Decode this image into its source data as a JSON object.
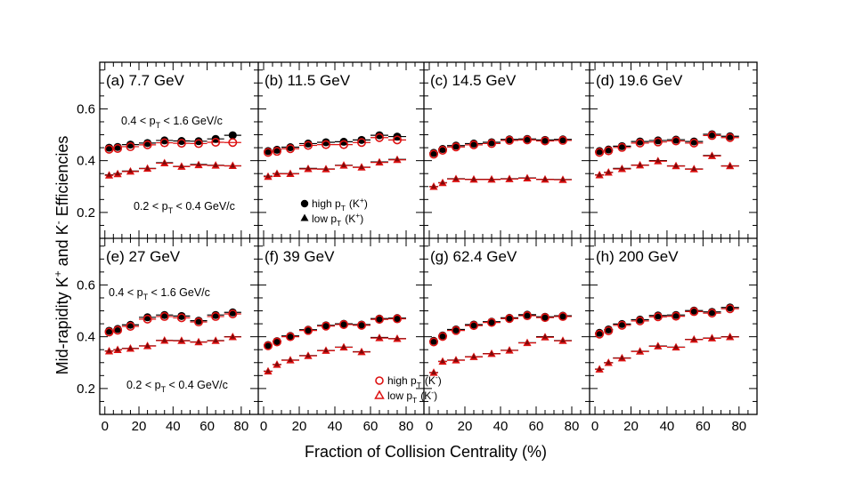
{
  "figure": {
    "ylabel_parts": [
      "Mid-rapidity K",
      "+",
      " and K",
      "-",
      " Efficiencies"
    ],
    "xlabel": "Fraction of Collision Centrality (%)",
    "xticks": [
      "0",
      "20",
      "40",
      "60",
      "80"
    ],
    "yticks": [
      "0.2",
      "0.4",
      "0.6"
    ],
    "colors": {
      "kplus": "#000000",
      "kminus": "#dd1111",
      "axis": "#000000"
    }
  },
  "annotations": {
    "high_range": {
      "pre": "0.4 < p",
      "sub": "T",
      "post": " < 1.6 GeV/c"
    },
    "low_range": {
      "pre": "0.2 < p",
      "sub": "T",
      "post": " < 0.4 GeV/c"
    }
  },
  "legends": {
    "kplus": [
      {
        "marker": "filled-circle",
        "pre": "high p",
        "sub": "T",
        "particle": "K",
        "charge": "+"
      },
      {
        "marker": "filled-triangle",
        "pre": "low p",
        "sub": "T",
        "particle": "K",
        "charge": "+"
      }
    ],
    "kminus": [
      {
        "marker": "open-circle",
        "pre": "high p",
        "sub": "T",
        "particle": "K",
        "charge": "-"
      },
      {
        "marker": "open-triangle",
        "pre": "low p",
        "sub": "T",
        "particle": "K",
        "charge": "-"
      }
    ]
  },
  "chart_data": {
    "type": "scatter",
    "x_label": "Fraction of Collision Centrality (%)",
    "y_label": "Mid-rapidity K+ and K- Efficiencies",
    "xlim": [
      -3,
      90
    ],
    "ylim": [
      0.1,
      0.78
    ],
    "centrality_bins": [
      [
        0,
        5
      ],
      [
        5,
        10
      ],
      [
        10,
        20
      ],
      [
        20,
        30
      ],
      [
        30,
        40
      ],
      [
        40,
        50
      ],
      [
        50,
        60
      ],
      [
        60,
        70
      ],
      [
        70,
        80
      ]
    ],
    "panels": [
      {
        "label": "(a)",
        "energy": "7.7 GeV",
        "x": [
          2.5,
          7.5,
          15,
          25,
          35,
          45,
          55,
          65,
          75
        ],
        "high_kplus": [
          0.45,
          0.453,
          0.462,
          0.468,
          0.478,
          0.476,
          0.475,
          0.484,
          0.498
        ],
        "high_kminus": [
          0.444,
          0.447,
          0.454,
          0.461,
          0.469,
          0.467,
          0.466,
          0.471,
          0.47
        ],
        "low_kplus": [
          0.345,
          0.35,
          0.36,
          0.37,
          0.392,
          0.378,
          0.385,
          0.382,
          0.38
        ],
        "low_kminus": [
          0.343,
          0.348,
          0.358,
          0.369,
          0.39,
          0.377,
          0.383,
          0.381,
          0.38
        ]
      },
      {
        "label": "(b)",
        "energy": "11.5 GeV",
        "x": [
          2.5,
          7.5,
          15,
          25,
          35,
          45,
          55,
          65,
          75
        ],
        "high_kplus": [
          0.437,
          0.442,
          0.452,
          0.466,
          0.471,
          0.473,
          0.48,
          0.498,
          0.493
        ],
        "high_kminus": [
          0.432,
          0.436,
          0.446,
          0.459,
          0.462,
          0.462,
          0.47,
          0.489,
          0.48
        ],
        "low_kplus": [
          0.34,
          0.35,
          0.35,
          0.37,
          0.368,
          0.382,
          0.375,
          0.395,
          0.405
        ],
        "low_kminus": [
          0.338,
          0.349,
          0.349,
          0.368,
          0.367,
          0.381,
          0.374,
          0.393,
          0.403
        ]
      },
      {
        "label": "(c)",
        "energy": "14.5 GeV",
        "x": [
          2.5,
          7.5,
          15,
          25,
          35,
          45,
          55,
          65,
          75
        ],
        "high_kplus": [
          0.43,
          0.445,
          0.458,
          0.466,
          0.471,
          0.482,
          0.484,
          0.48,
          0.482
        ],
        "high_kminus": [
          0.425,
          0.44,
          0.453,
          0.461,
          0.466,
          0.478,
          0.48,
          0.476,
          0.478
        ],
        "low_kplus": [
          0.3,
          0.315,
          0.33,
          0.328,
          0.328,
          0.33,
          0.333,
          0.328,
          0.327
        ],
        "low_kminus": [
          0.299,
          0.314,
          0.329,
          0.327,
          0.327,
          0.329,
          0.332,
          0.327,
          0.326
        ]
      },
      {
        "label": "(d)",
        "energy": "19.6 GeV",
        "x": [
          2.5,
          7.5,
          15,
          25,
          35,
          45,
          55,
          65,
          75
        ],
        "high_kplus": [
          0.437,
          0.443,
          0.456,
          0.474,
          0.478,
          0.481,
          0.474,
          0.502,
          0.494
        ],
        "high_kminus": [
          0.432,
          0.438,
          0.451,
          0.468,
          0.472,
          0.476,
          0.468,
          0.497,
          0.489
        ],
        "low_kplus": [
          0.345,
          0.355,
          0.37,
          0.383,
          0.4,
          0.38,
          0.368,
          0.42,
          0.38
        ],
        "low_kminus": [
          0.344,
          0.354,
          0.368,
          0.382,
          0.398,
          0.379,
          0.367,
          0.418,
          0.379
        ]
      },
      {
        "label": "(e)",
        "energy": "27 GeV",
        "x": [
          2.5,
          7.5,
          15,
          25,
          35,
          45,
          55,
          65,
          75
        ],
        "high_kplus": [
          0.423,
          0.43,
          0.446,
          0.475,
          0.484,
          0.48,
          0.462,
          0.484,
          0.494
        ],
        "high_kminus": [
          0.418,
          0.425,
          0.44,
          0.468,
          0.478,
          0.473,
          0.457,
          0.478,
          0.488
        ],
        "low_kplus": [
          0.345,
          0.35,
          0.355,
          0.365,
          0.386,
          0.385,
          0.38,
          0.385,
          0.4
        ],
        "low_kminus": [
          0.344,
          0.349,
          0.354,
          0.364,
          0.385,
          0.384,
          0.379,
          0.384,
          0.399
        ]
      },
      {
        "label": "(f)",
        "energy": "39 GeV",
        "x": [
          2.5,
          7.5,
          15,
          25,
          35,
          45,
          55,
          65,
          75
        ],
        "high_kplus": [
          0.368,
          0.383,
          0.403,
          0.427,
          0.444,
          0.45,
          0.447,
          0.47,
          0.472
        ],
        "high_kminus": [
          0.365,
          0.38,
          0.4,
          0.424,
          0.441,
          0.447,
          0.444,
          0.467,
          0.469
        ],
        "low_kplus": [
          0.267,
          0.293,
          0.31,
          0.327,
          0.347,
          0.36,
          0.342,
          0.397,
          0.393
        ],
        "low_kminus": [
          0.266,
          0.292,
          0.309,
          0.326,
          0.346,
          0.359,
          0.341,
          0.395,
          0.392
        ]
      },
      {
        "label": "(g)",
        "energy": "62.4 GeV",
        "x": [
          2.5,
          7.5,
          15,
          25,
          35,
          45,
          55,
          65,
          75
        ],
        "high_kplus": [
          0.384,
          0.405,
          0.428,
          0.447,
          0.458,
          0.473,
          0.485,
          0.477,
          0.481
        ],
        "high_kminus": [
          0.38,
          0.401,
          0.424,
          0.443,
          0.455,
          0.47,
          0.481,
          0.474,
          0.478
        ],
        "low_kplus": [
          0.262,
          0.305,
          0.31,
          0.323,
          0.335,
          0.348,
          0.377,
          0.4,
          0.385
        ],
        "low_kminus": [
          0.261,
          0.304,
          0.309,
          0.322,
          0.334,
          0.347,
          0.376,
          0.398,
          0.384
        ]
      },
      {
        "label": "(h)",
        "energy": "200 GeV",
        "x": [
          2.5,
          7.5,
          15,
          25,
          35,
          45,
          55,
          65,
          75
        ],
        "high_kplus": [
          0.415,
          0.428,
          0.449,
          0.466,
          0.482,
          0.484,
          0.501,
          0.496,
          0.513
        ],
        "high_kminus": [
          0.41,
          0.423,
          0.444,
          0.461,
          0.477,
          0.479,
          0.497,
          0.491,
          0.508
        ],
        "low_kplus": [
          0.275,
          0.3,
          0.318,
          0.344,
          0.364,
          0.36,
          0.39,
          0.395,
          0.4
        ],
        "low_kminus": [
          0.274,
          0.299,
          0.317,
          0.343,
          0.363,
          0.359,
          0.389,
          0.394,
          0.399
        ]
      }
    ]
  }
}
